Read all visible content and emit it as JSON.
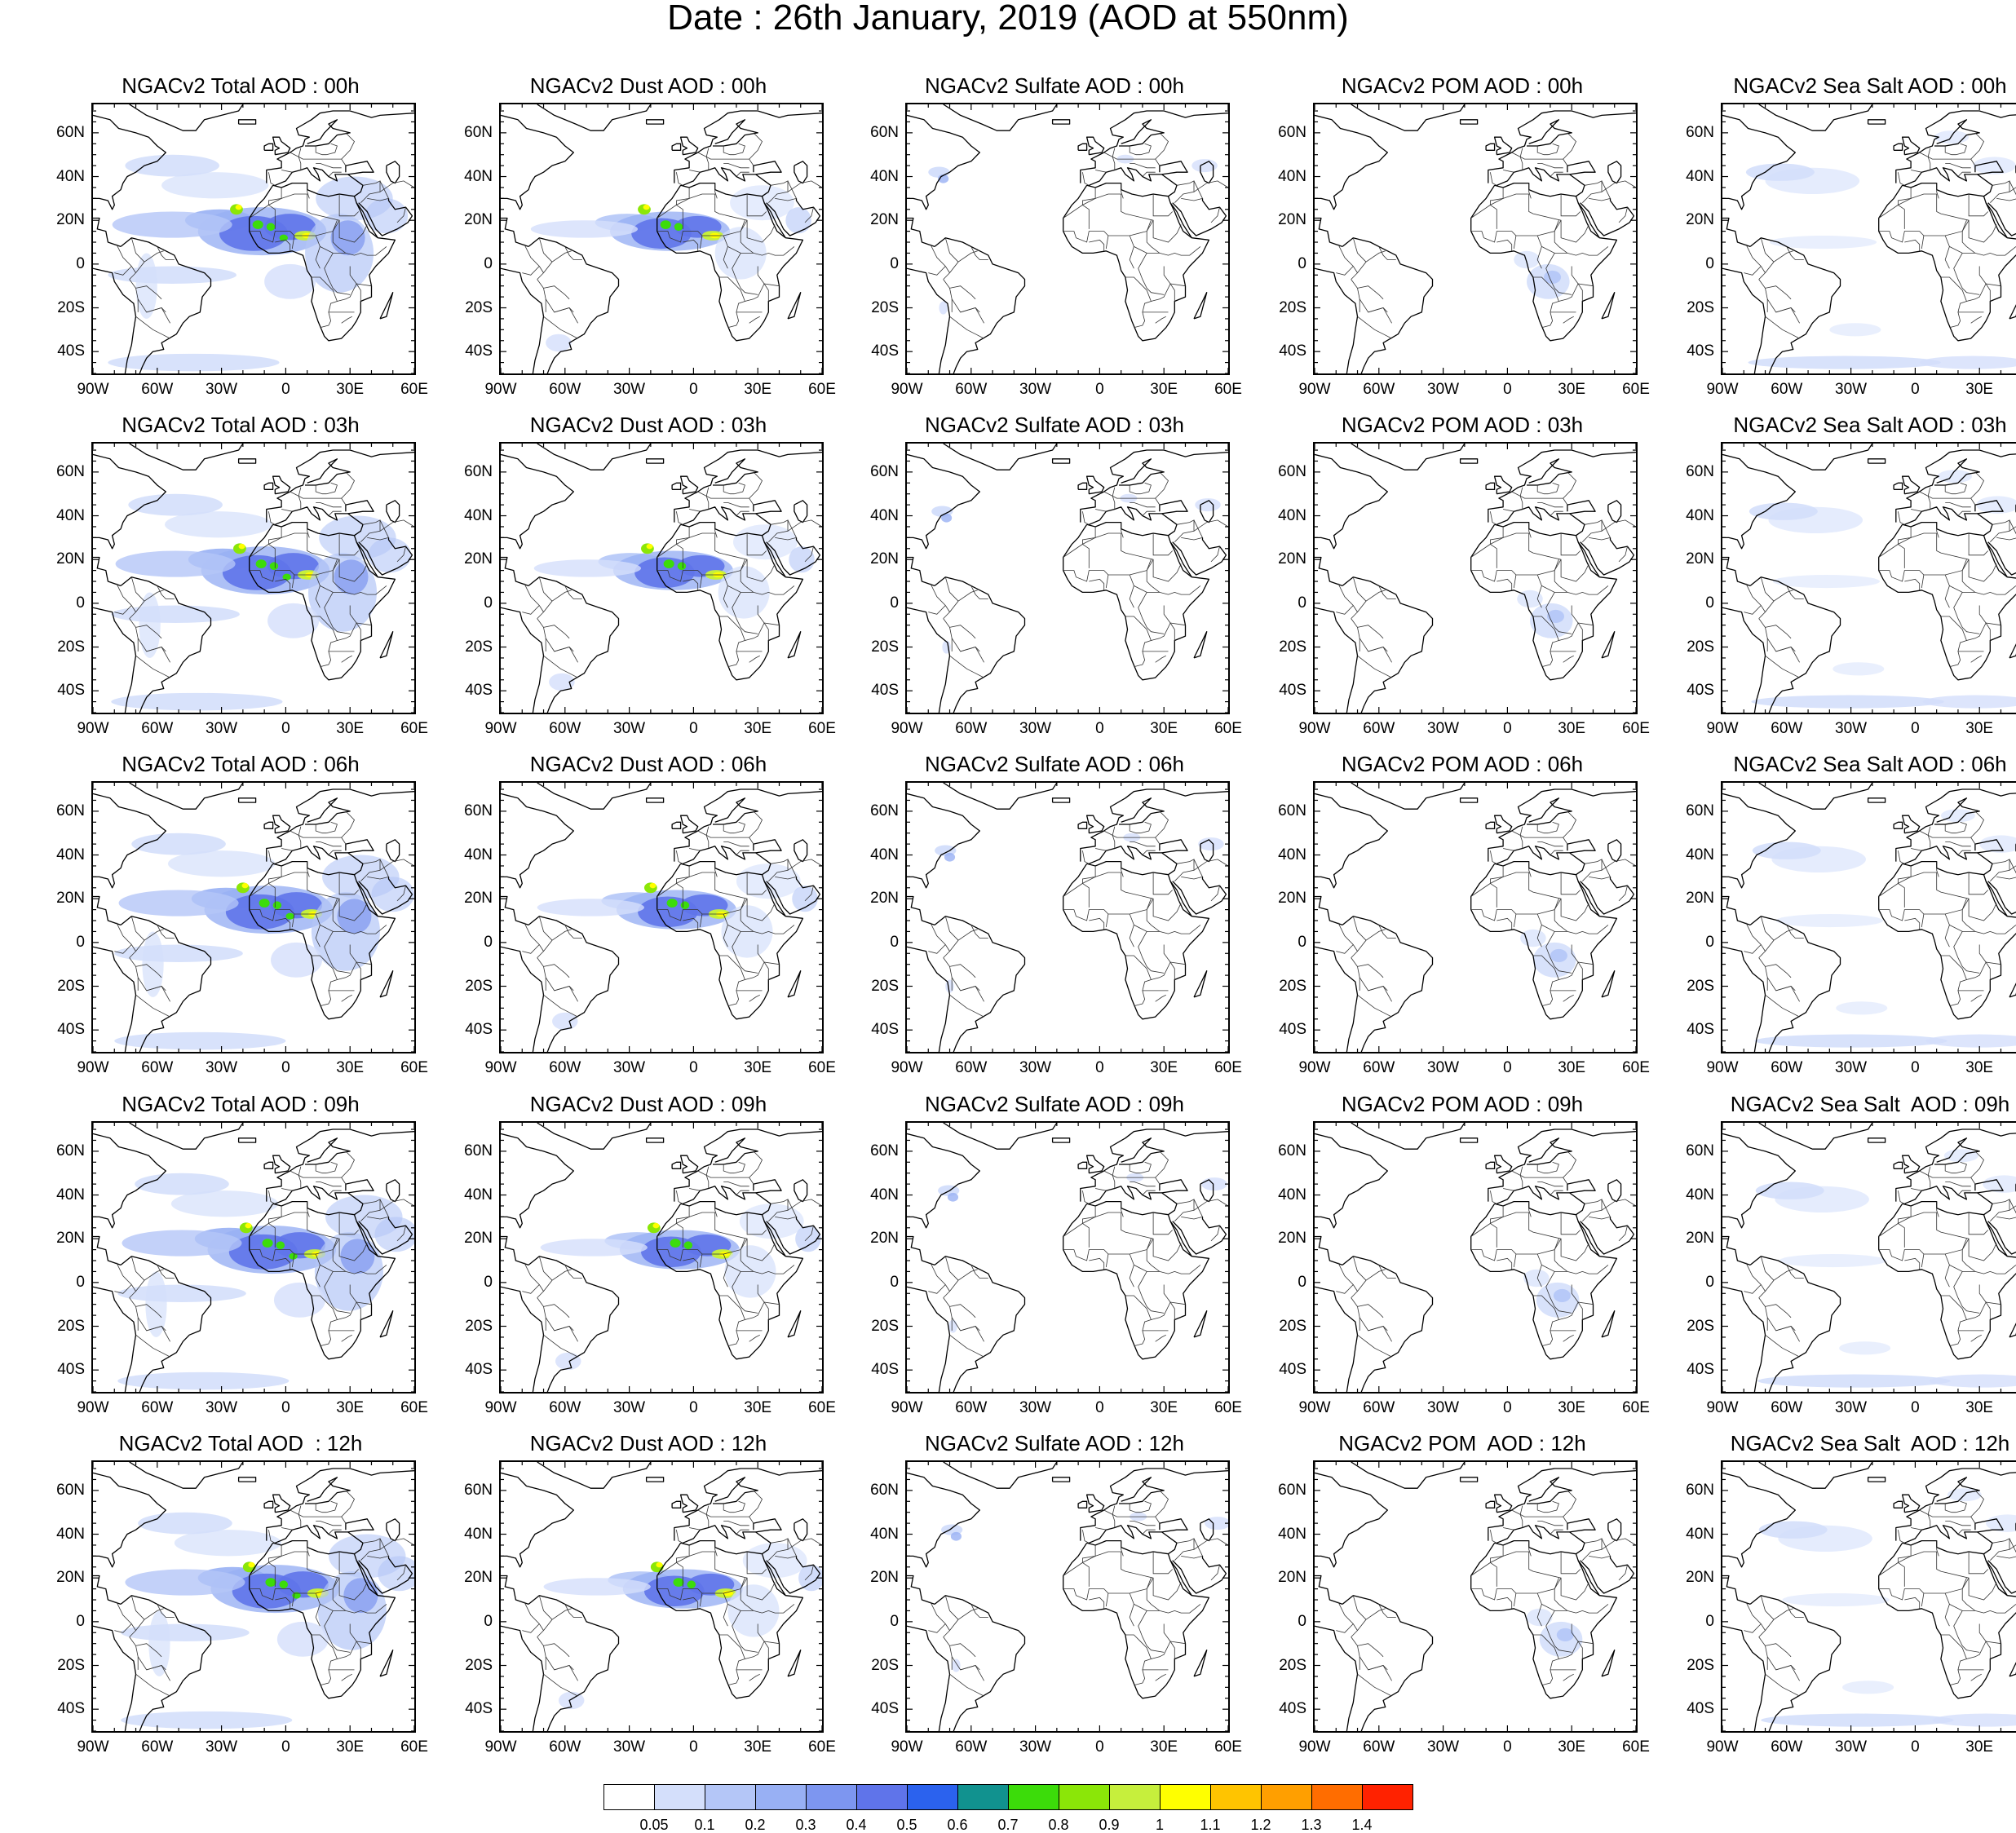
{
  "title": "Date : 26th January, 2019 (AOD at 550nm)",
  "axes": {
    "lat_labels": [
      "60N",
      "40N",
      "20N",
      "0",
      "20S",
      "40S"
    ],
    "lon_labels": [
      "90W",
      "60W",
      "30W",
      "0",
      "30E",
      "60E"
    ]
  },
  "panels": [
    [
      "NGACv2 Total AOD : 00h",
      "NGACv2 Dust AOD : 00h",
      "NGACv2 Sulfate AOD : 00h",
      "NGACv2 POM AOD : 00h",
      "NGACv2 Sea Salt AOD : 00h"
    ],
    [
      "NGACv2 Total AOD : 03h",
      "NGACv2 Dust AOD : 03h",
      "NGACv2 Sulfate AOD : 03h",
      "NGACv2 POM AOD : 03h",
      "NGACv2 Sea Salt AOD : 03h"
    ],
    [
      "NGACv2 Total AOD : 06h",
      "NGACv2 Dust AOD : 06h",
      "NGACv2 Sulfate AOD : 06h",
      "NGACv2 POM AOD : 06h",
      "NGACv2 Sea Salt AOD : 06h"
    ],
    [
      "NGACv2 Total AOD : 09h",
      "NGACv2 Dust AOD : 09h",
      "NGACv2 Sulfate AOD : 09h",
      "NGACv2 POM AOD : 09h",
      "NGACv2 Sea Salt  AOD : 09h"
    ],
    [
      "NGACv2 Total AOD  : 12h",
      "NGACv2 Dust AOD : 12h",
      "NGACv2 Sulfate AOD : 12h",
      "NGACv2 POM  AOD : 12h",
      "NGACv2 Sea Salt  AOD : 12h"
    ]
  ],
  "colorbar": {
    "labels": [
      "0.05",
      "0.1",
      "0.2",
      "0.3",
      "0.4",
      "0.5",
      "0.6",
      "0.7",
      "0.8",
      "0.9",
      "1",
      "1.1",
      "1.2",
      "1.3",
      "1.4"
    ],
    "colors": [
      "#ffffff",
      "#d4dffb",
      "#b4c6f7",
      "#98b0f4",
      "#7d96f0",
      "#5f74ea",
      "#2b62ee",
      "#11928f",
      "#3cdc0a",
      "#8be608",
      "#c6ef3c",
      "#ffff00",
      "#ffc400",
      "#ff9f00",
      "#ff6d00",
      "#ff2200"
    ]
  }
}
